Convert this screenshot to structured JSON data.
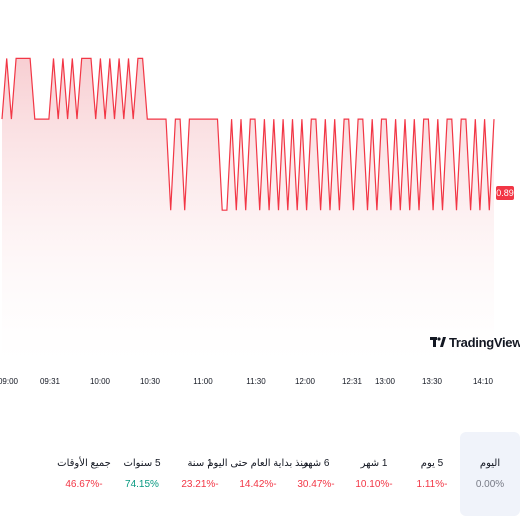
{
  "chart_data": {
    "type": "area",
    "title": "",
    "xlabel": "",
    "ylabel": "",
    "last_price_label": "0.89",
    "x_ticks": [
      "09:00",
      "09:31",
      "10:00",
      "10:30",
      "11:00",
      "11:30",
      "12:00",
      "12:31",
      "13:00",
      "13:30",
      "14:10"
    ],
    "series": [
      {
        "description": "flat price alternating between high and low levels over the session (y as fraction of chart height range)",
        "levels": {
          "high": 0.93,
          "mid": 0.89,
          "low": 0.83
        },
        "values": [
          0.89,
          0.93,
          0.89,
          0.93,
          0.93,
          0.93,
          0.93,
          0.89,
          0.89,
          0.89,
          0.89,
          0.93,
          0.89,
          0.93,
          0.89,
          0.93,
          0.89,
          0.93,
          0.93,
          0.93,
          0.89,
          0.93,
          0.89,
          0.93,
          0.89,
          0.93,
          0.89,
          0.93,
          0.89,
          0.93,
          0.93,
          0.89,
          0.89,
          0.89,
          0.89,
          0.89,
          0.83,
          0.89,
          0.89,
          0.83,
          0.89,
          0.89,
          0.89,
          0.89,
          0.89,
          0.89,
          0.89,
          0.83,
          0.83,
          0.89,
          0.83,
          0.89,
          0.83,
          0.89,
          0.89,
          0.83,
          0.89,
          0.83,
          0.89,
          0.83,
          0.89,
          0.83,
          0.89,
          0.83,
          0.89,
          0.83,
          0.89,
          0.89,
          0.83,
          0.89,
          0.83,
          0.89,
          0.83,
          0.89,
          0.89,
          0.83,
          0.89,
          0.89,
          0.83,
          0.89,
          0.83,
          0.89,
          0.89,
          0.83,
          0.89,
          0.83,
          0.89,
          0.83,
          0.89,
          0.83,
          0.89,
          0.89,
          0.83,
          0.89,
          0.83,
          0.89,
          0.89,
          0.83,
          0.89,
          0.89,
          0.83,
          0.89,
          0.83,
          0.89,
          0.83,
          0.89
        ]
      }
    ],
    "colors": {
      "line": "#f23645",
      "fill_top": "#f7c9cd",
      "fill_bottom": "#ffffff"
    }
  },
  "branding": {
    "logo_text": "TradingView"
  },
  "periods": [
    {
      "label": "اليوم",
      "change": "0.00%",
      "tone": "neutral",
      "active": true
    },
    {
      "label": "5 يوم",
      "change": "1.11%-",
      "tone": "neg",
      "active": false
    },
    {
      "label": "1 شهر",
      "change": "10.10%-",
      "tone": "neg",
      "active": false
    },
    {
      "label": "6 شهر",
      "change": "30.47%-",
      "tone": "neg",
      "active": false
    },
    {
      "label": "منذ بداية العام حتى اليوم",
      "change": "14.42%-",
      "tone": "neg",
      "active": false
    },
    {
      "label": "1 سنة",
      "change": "23.21%-",
      "tone": "neg",
      "active": false
    },
    {
      "label": "5 سنوات",
      "change": "74.15%",
      "tone": "pos",
      "active": false
    },
    {
      "label": "جميع الأوقات",
      "change": "46.67%-",
      "tone": "neg",
      "active": false
    }
  ]
}
